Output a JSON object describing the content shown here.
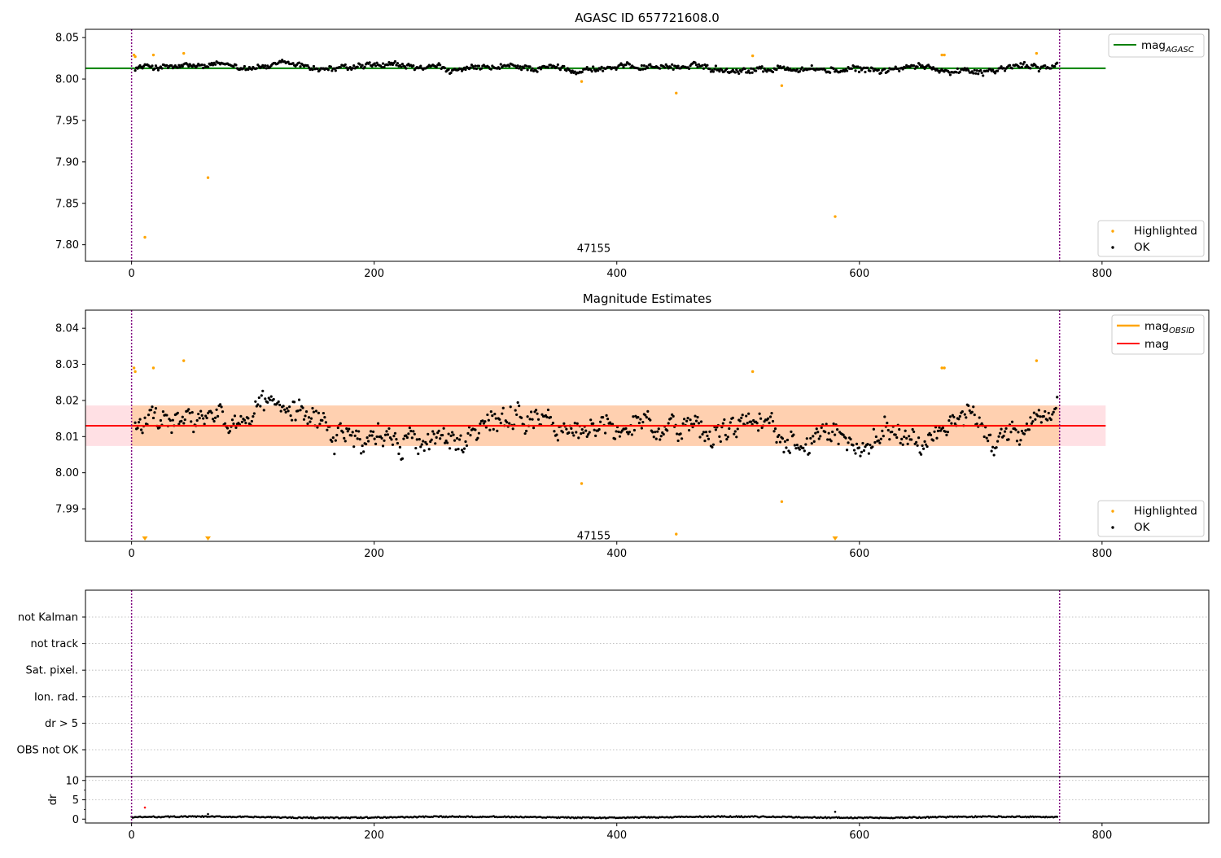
{
  "figure": {
    "background": "#ffffff"
  },
  "colors": {
    "ok": "#000000",
    "highlight": "#ffa500",
    "agasc_line": "#008000",
    "obsid_line": "#ffa500",
    "mag_line": "#ff0000",
    "band_inner": "#ffd0b0",
    "band_outer": "#ffe0e4",
    "vline": "#800080",
    "grid": "#b0b0b0",
    "dr_red": "#ff0000"
  },
  "chart_data": [
    {
      "type": "scatter",
      "title": "AGASC ID 657721608.0",
      "xlim": [
        -38,
        888
      ],
      "ylim": [
        7.78,
        8.06
      ],
      "xticks": [
        0,
        200,
        400,
        600,
        800
      ],
      "xtick_labels": [
        "0",
        "200",
        "400",
        "600",
        "800"
      ],
      "yticks": [
        7.8,
        7.85,
        7.9,
        7.95,
        8.0,
        8.05
      ],
      "ytick_labels": [
        "7.80",
        "7.85",
        "7.90",
        "7.95",
        "8.00",
        "8.05"
      ],
      "vlines": [
        0,
        765
      ],
      "annotation": {
        "x": 381,
        "y": 7.795,
        "text": "47155"
      },
      "hline": {
        "y": 8.013,
        "x0": -38,
        "x1": 803,
        "name": "mag",
        "subscript": "AGASC"
      },
      "ok_series": {
        "name": "OK",
        "n": 760,
        "x_start": 3,
        "x_end": 763,
        "base": 8.013,
        "y_min": 7.998,
        "y_max": 8.0265,
        "amplitude": 0.006
      },
      "highlighted": {
        "name": "Highlighted",
        "points": [
          {
            "x": 2,
            "y": 8.029
          },
          {
            "x": 3,
            "y": 8.027
          },
          {
            "x": 11,
            "y": 7.809
          },
          {
            "x": 18,
            "y": 8.029
          },
          {
            "x": 43,
            "y": 8.031
          },
          {
            "x": 63,
            "y": 7.881
          },
          {
            "x": 371,
            "y": 7.997
          },
          {
            "x": 449,
            "y": 7.983
          },
          {
            "x": 512,
            "y": 8.028
          },
          {
            "x": 536,
            "y": 7.992
          },
          {
            "x": 580,
            "y": 7.834
          },
          {
            "x": 668,
            "y": 8.029
          },
          {
            "x": 670,
            "y": 8.029
          },
          {
            "x": 746,
            "y": 8.031
          }
        ]
      },
      "legend_top": [
        {
          "label": "mag",
          "subscript": "AGASC"
        }
      ],
      "legend_bottom": [
        {
          "label": "Highlighted"
        },
        {
          "label": "OK"
        }
      ]
    },
    {
      "type": "scatter",
      "title": "Magnitude Estimates",
      "xlim": [
        -38,
        888
      ],
      "ylim": [
        7.981,
        8.045
      ],
      "xticks": [
        0,
        200,
        400,
        600,
        800
      ],
      "xtick_labels": [
        "0",
        "200",
        "400",
        "600",
        "800"
      ],
      "yticks": [
        7.99,
        8.0,
        8.01,
        8.02,
        8.03,
        8.04
      ],
      "ytick_labels": [
        "7.99",
        "8.00",
        "8.01",
        "8.02",
        "8.03",
        "8.04"
      ],
      "vlines": [
        0,
        765
      ],
      "annotation": {
        "x": 381,
        "y": 7.9825,
        "text": "47155"
      },
      "bands": [
        {
          "x0": -38,
          "x1": 803,
          "y0": 8.0074,
          "y1": 8.0186,
          "color": "band_outer"
        },
        {
          "x0": 0,
          "x1": 765,
          "y0": 8.0074,
          "y1": 8.0186,
          "color": "band_inner"
        }
      ],
      "mag_line": {
        "y": 8.013,
        "x0": -38,
        "x1": 803,
        "name": "mag"
      },
      "obsid_line": {
        "y": 8.013,
        "x0": 0,
        "x1": 765,
        "name": "mag",
        "subscript": "OBSID"
      },
      "ok_series": {
        "name": "OK",
        "n": 760,
        "x_start": 3,
        "x_end": 763,
        "base": 8.012,
        "y_min": 7.998,
        "y_max": 8.0265,
        "amplitude": 0.0055
      },
      "highlighted": {
        "name": "Highlighted",
        "points": [
          {
            "x": 2,
            "y": 8.029
          },
          {
            "x": 3,
            "y": 8.028
          },
          {
            "x": 18,
            "y": 8.029
          },
          {
            "x": 43,
            "y": 8.031
          },
          {
            "x": 371,
            "y": 7.997
          },
          {
            "x": 449,
            "y": 7.983
          },
          {
            "x": 512,
            "y": 8.028
          },
          {
            "x": 536,
            "y": 7.992
          },
          {
            "x": 668,
            "y": 8.029
          },
          {
            "x": 670,
            "y": 8.029
          },
          {
            "x": 746,
            "y": 8.031
          }
        ],
        "below_range": [
          {
            "x": 11
          },
          {
            "x": 63
          },
          {
            "x": 580
          }
        ]
      },
      "legend_top": [
        {
          "label": "mag",
          "subscript": "OBSID"
        },
        {
          "label": "mag"
        }
      ],
      "legend_bottom": [
        {
          "label": "Highlighted"
        },
        {
          "label": "OK"
        }
      ]
    },
    {
      "type": "scatter",
      "xlim": [
        -38,
        888
      ],
      "flag_rows": [
        "not Kalman",
        "not track",
        "Sat. pixel.",
        "Ion. rad.",
        "dr > 5",
        "OBS not OK"
      ],
      "vlines": [
        0,
        765
      ]
    },
    {
      "type": "scatter",
      "xlim": [
        -38,
        888
      ],
      "ylim": [
        -1,
        11
      ],
      "ylabel": "dr",
      "xticks": [
        0,
        200,
        400,
        600,
        800
      ],
      "xtick_labels": [
        "0",
        "200",
        "400",
        "600",
        "800"
      ],
      "yticks": [
        0,
        5,
        10
      ],
      "ytick_labels": [
        "0",
        "5",
        "10"
      ],
      "vlines": [
        0,
        765
      ],
      "series": {
        "n": 760,
        "x_start": 0,
        "x_end": 763,
        "base": 0.5,
        "amplitude": 0.3
      },
      "outliers": [
        {
          "x": 63,
          "y": 1.3
        },
        {
          "x": 580,
          "y": 1.9
        }
      ],
      "red_points": [
        {
          "x": 11,
          "y": 3.0
        }
      ]
    }
  ]
}
